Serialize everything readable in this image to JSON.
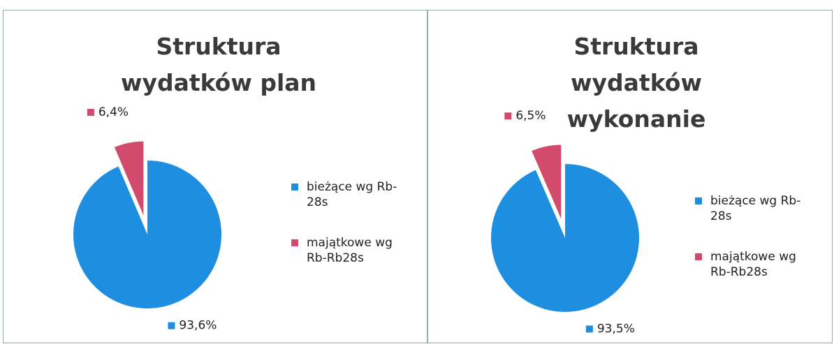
{
  "chart_data": [
    {
      "type": "pie",
      "title": "Struktura wydatków plan",
      "categories": [
        "bieżące wg Rb-28s",
        "majątkowe wg Rb-Rb28s"
      ],
      "values": [
        93.6,
        6.4
      ],
      "value_labels": [
        "93,6%",
        "6,4%"
      ],
      "colors": [
        "#1e8fe0",
        "#d24b6c"
      ]
    },
    {
      "type": "pie",
      "title": "Struktura wydatków wykonanie",
      "categories": [
        "bieżące wg Rb-28s",
        "majątkowe wg Rb-Rb28s"
      ],
      "values": [
        93.5,
        6.5
      ],
      "value_labels": [
        "93,5%",
        "6,5%"
      ],
      "colors": [
        "#1e8fe0",
        "#d24b6c"
      ]
    }
  ]
}
